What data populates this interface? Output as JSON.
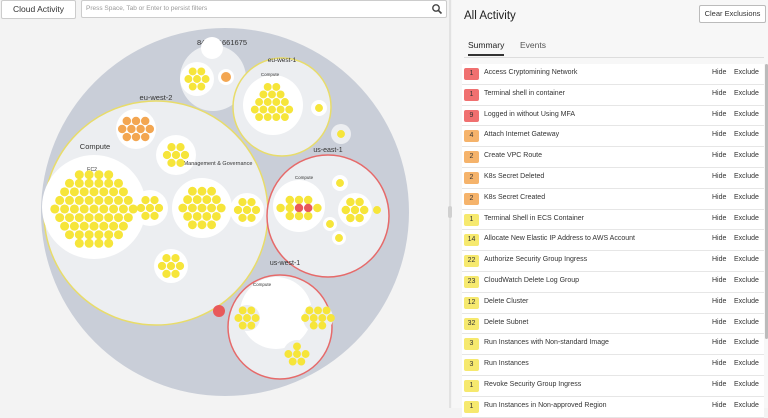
{
  "toolbar": {
    "cloud_activity_label": "Cloud Activity",
    "search_placeholder": "Press Space, Tab or Enter to persist filters"
  },
  "graph": {
    "account_label": "845151661675",
    "region_labels": {
      "eu_west_2": "eu-west-2",
      "eu_west_1": "eu-west-1",
      "us_east_1": "us-east-1",
      "us_west_1": "us-west-1"
    },
    "group_labels": {
      "compute_large": "Compute",
      "mgmt": "Management & Governance",
      "ec2": "EC2",
      "compute_euw1": "Compute",
      "compute_use1": "Compute",
      "compute_usw1": "Compute"
    },
    "colors": {
      "background_circle": "#c9ced8",
      "inner_circle": "#eceef1",
      "region_yellow_border": "#e8dc6a",
      "region_red_border": "#e66a6a",
      "node_yellow": "#f6e53a",
      "node_orange": "#f3a651",
      "node_red": "#e8595a"
    }
  },
  "panel": {
    "title": "All Activity",
    "clear_label": "Clear Exclusions",
    "tabs": [
      {
        "label": "Summary",
        "active": true
      },
      {
        "label": "Events",
        "active": false
      }
    ],
    "hide_label": "Hide",
    "exclude_label": "Exclude",
    "rows": [
      {
        "count": "1",
        "name": "Access Cryptomining Network",
        "color": "#f07070"
      },
      {
        "count": "1",
        "name": "Terminal shell in container",
        "color": "#f07070"
      },
      {
        "count": "9",
        "name": "Logged in without Using MFA",
        "color": "#f07070"
      },
      {
        "count": "4",
        "name": "Attach Internet Gateway",
        "color": "#f5b36b"
      },
      {
        "count": "2",
        "name": "Create VPC Route",
        "color": "#f5b36b"
      },
      {
        "count": "2",
        "name": "K8s Secret Deleted",
        "color": "#f5b36b"
      },
      {
        "count": "2",
        "name": "K8s Secret Created",
        "color": "#f5b36b"
      },
      {
        "count": "1",
        "name": "Terminal Shell in ECS Container",
        "color": "#f6e96e"
      },
      {
        "count": "14",
        "name": "Allocate New Elastic IP Address to AWS Account",
        "color": "#f6e96e"
      },
      {
        "count": "22",
        "name": "Authorize Security Group Ingress",
        "color": "#f6e96e"
      },
      {
        "count": "23",
        "name": "CloudWatch Delete Log Group",
        "color": "#f6e96e"
      },
      {
        "count": "12",
        "name": "Delete Cluster",
        "color": "#f6e96e"
      },
      {
        "count": "32",
        "name": "Delete Subnet",
        "color": "#f6e96e"
      },
      {
        "count": "3",
        "name": "Run Instances with Non-standard Image",
        "color": "#f6e96e"
      },
      {
        "count": "3",
        "name": "Run Instances",
        "color": "#f6e96e"
      },
      {
        "count": "1",
        "name": "Revoke Security Group Ingress",
        "color": "#f6e96e"
      },
      {
        "count": "1",
        "name": "Run Instances in Non-approved Region",
        "color": "#f6e96e"
      }
    ]
  }
}
